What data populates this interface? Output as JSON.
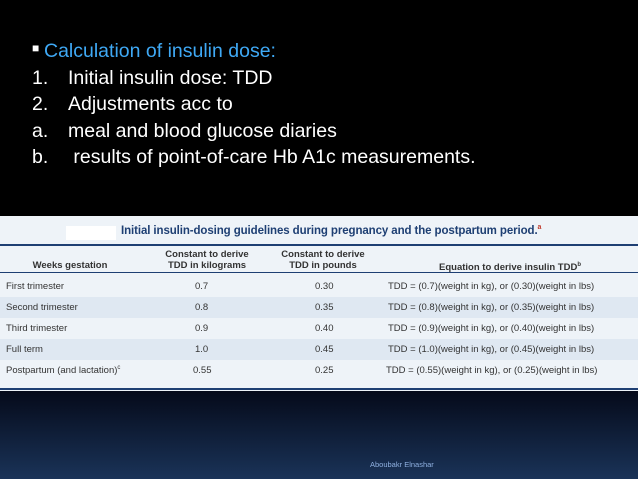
{
  "bullets": {
    "heading": "Calculation of insulin dose:",
    "items": [
      {
        "marker": "1.",
        "text": "Initial insulin dose: TDD"
      },
      {
        "marker": "2.",
        "text": "Adjustments acc to"
      },
      {
        "marker": "a.",
        "text": "meal and blood glucose diaries"
      },
      {
        "marker": "b.",
        "text": " results of point-of-care Hb A1c measurements."
      }
    ]
  },
  "table": {
    "caption": "Initial insulin-dosing guidelines during pregnancy and the postpartum period.",
    "caption_sup": "a",
    "headers": {
      "weeks": "Weeks gestation",
      "kg_line1": "Constant to derive",
      "kg_line2": "TDD in kilograms",
      "lb_line1": "Constant to derive",
      "lb_line2": "TDD in pounds",
      "eq": "Equation to derive insulin TDD",
      "eq_sup": "b"
    },
    "rows": [
      {
        "weeks": "First trimester",
        "sup": "",
        "kg": "0.7",
        "lb": "0.30",
        "eq": "TDD = (0.7)(weight in kg), or (0.30)(weight in lbs)"
      },
      {
        "weeks": "Second trimester",
        "sup": "",
        "kg": "0.8",
        "lb": "0.35",
        "eq": "TDD = (0.8)(weight in kg), or (0.35)(weight in lbs)"
      },
      {
        "weeks": "Third trimester",
        "sup": "",
        "kg": "0.9",
        "lb": "0.40",
        "eq": "TDD = (0.9)(weight in kg), or (0.40)(weight in lbs)"
      },
      {
        "weeks": "Full term",
        "sup": "",
        "kg": "1.0",
        "lb": "0.45",
        "eq": "TDD = (1.0)(weight in kg), or (0.45)(weight in lbs)"
      },
      {
        "weeks": "Postpartum (and lactation)",
        "sup": "c",
        "kg": "0.55",
        "lb": "0.25",
        "eq": "TDD = (0.55)(weight in kg), or (0.25)(weight in lbs)"
      }
    ]
  },
  "footer": {
    "author": "Aboubakr Elnashar"
  },
  "colors": {
    "heading": "#3fa9f5",
    "table_accent": "#1e3f73",
    "footer_bg": "#1a3358"
  }
}
